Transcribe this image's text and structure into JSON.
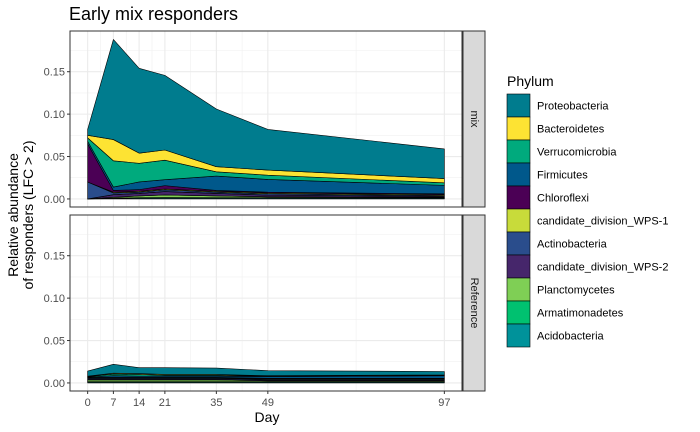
{
  "chart_data": {
    "type": "area",
    "stacked": true,
    "title": "Early mix responders",
    "xlabel": "Day",
    "ylabel_lines": [
      "Relative abundance",
      "of responders (LFC > 2)"
    ],
    "x": [
      0,
      7,
      14,
      21,
      35,
      49,
      97
    ],
    "x_ticks": [
      0,
      7,
      14,
      21,
      35,
      49,
      97
    ],
    "xlim": [
      -4.8,
      101.8
    ],
    "y_ticks": [
      0.0,
      0.05,
      0.1,
      0.15
    ],
    "y_tick_labels": [
      "0.00",
      "0.05",
      "0.10",
      "0.15"
    ],
    "ylim": [
      -0.0095,
      0.198
    ],
    "grid": true,
    "legend_title": "Phylum",
    "legend_position": "right",
    "stack_order_bottom_to_top": [
      "Acidobacteria",
      "Armatimonadetes",
      "Planctomycetes",
      "candidate_division_WPS-2",
      "Actinobacteria",
      "candidate_division_WPS-1",
      "Chloroflexi",
      "Firmicutes",
      "Verrucomicrobia",
      "Bacteroidetes",
      "Proteobacteria"
    ],
    "legend": [
      {
        "name": "Proteobacteria",
        "color": "#007C8E"
      },
      {
        "name": "Bacteroidetes",
        "color": "#FDE333"
      },
      {
        "name": "Verrucomicrobia",
        "color": "#00AA7D"
      },
      {
        "name": "Firmicutes",
        "color": "#00588B"
      },
      {
        "name": "Chloroflexi",
        "color": "#4B0055"
      },
      {
        "name": "candidate_division_WPS-1",
        "color": "#C8DB3A"
      },
      {
        "name": "Actinobacteria",
        "color": "#2A4D8C"
      },
      {
        "name": "candidate_division_WPS-2",
        "color": "#46266B"
      },
      {
        "name": "Planctomycetes",
        "color": "#7FCF55"
      },
      {
        "name": "Armatimonadetes",
        "color": "#00C170"
      },
      {
        "name": "Acidobacteria",
        "color": "#00929A"
      }
    ],
    "panels": [
      {
        "label": "mix",
        "series": [
          {
            "name": "Acidobacteria",
            "values": [
              0.0,
              0.0005,
              0.001,
              0.0012,
              0.001,
              0.001,
              0.0008
            ]
          },
          {
            "name": "Armatimonadetes",
            "values": [
              0.0,
              0.0005,
              0.0005,
              0.0005,
              0.0005,
              0.0005,
              0.0005
            ]
          },
          {
            "name": "Planctomycetes",
            "values": [
              0.0,
              0.001,
              0.002,
              0.003,
              0.002,
              0.001,
              0.0007
            ]
          },
          {
            "name": "candidate_division_WPS-2",
            "values": [
              0.0,
              0.003,
              0.003,
              0.004,
              0.003,
              0.002,
              0.001
            ]
          },
          {
            "name": "Actinobacteria",
            "values": [
              0.02,
              0.002,
              0.0015,
              0.002,
              0.0015,
              0.0015,
              0.001
            ]
          },
          {
            "name": "candidate_division_WPS-1",
            "values": [
              0.0,
              0.001,
              0.001,
              0.001,
              0.001,
              0.001,
              0.001
            ]
          },
          {
            "name": "Chloroflexi",
            "values": [
              0.045,
              0.002,
              0.002,
              0.004,
              0.001,
              0.001,
              0.001
            ]
          },
          {
            "name": "Firmicutes",
            "values": [
              0.003,
              0.004,
              0.009,
              0.007,
              0.017,
              0.015,
              0.01
            ]
          },
          {
            "name": "Verrucomicrobia",
            "values": [
              0.004,
              0.031,
              0.022,
              0.023,
              0.005,
              0.005,
              0.003
            ]
          },
          {
            "name": "Bacteroidetes",
            "values": [
              0.003,
              0.025,
              0.012,
              0.012,
              0.006,
              0.006,
              0.005
            ]
          },
          {
            "name": "Proteobacteria",
            "values": [
              0.007,
              0.118,
              0.1,
              0.088,
              0.068,
              0.048,
              0.035
            ]
          }
        ]
      },
      {
        "label": "Reference",
        "series": [
          {
            "name": "Acidobacteria",
            "values": [
              0.001,
              0.001,
              0.001,
              0.001,
              0.001,
              0.001,
              0.001
            ]
          },
          {
            "name": "Armatimonadetes",
            "values": [
              0.0005,
              0.0005,
              0.0005,
              0.0005,
              0.0005,
              0.0005,
              0.0005
            ]
          },
          {
            "name": "Planctomycetes",
            "values": [
              0.002,
              0.002,
              0.002,
              0.002,
              0.002,
              0.001,
              0.001
            ]
          },
          {
            "name": "candidate_division_WPS-2",
            "values": [
              0.001,
              0.001,
              0.001,
              0.001,
              0.001,
              0.001,
              0.001
            ]
          },
          {
            "name": "Actinobacteria",
            "values": [
              0.001,
              0.001,
              0.001,
              0.001,
              0.001,
              0.001,
              0.001
            ]
          },
          {
            "name": "candidate_division_WPS-1",
            "values": [
              0.0005,
              0.0005,
              0.0005,
              0.0005,
              0.0005,
              0.0005,
              0.0005
            ]
          },
          {
            "name": "Chloroflexi",
            "values": [
              0.0005,
              0.0005,
              0.0005,
              0.0005,
              0.0005,
              0.0005,
              0.0005
            ]
          },
          {
            "name": "Firmicutes",
            "values": [
              0.0005,
              0.002,
              0.0015,
              0.0015,
              0.0015,
              0.002,
              0.003
            ]
          },
          {
            "name": "Verrucomicrobia",
            "values": [
              0.0005,
              0.002,
              0.002,
              0.001,
              0.001,
              0.0005,
              0.0005
            ]
          },
          {
            "name": "Bacteroidetes",
            "values": [
              0.0005,
              0.001,
              0.001,
              0.001,
              0.001,
              0.0005,
              0.0005
            ]
          },
          {
            "name": "Proteobacteria",
            "values": [
              0.006,
              0.0105,
              0.007,
              0.008,
              0.0075,
              0.006,
              0.004
            ]
          }
        ]
      }
    ]
  }
}
